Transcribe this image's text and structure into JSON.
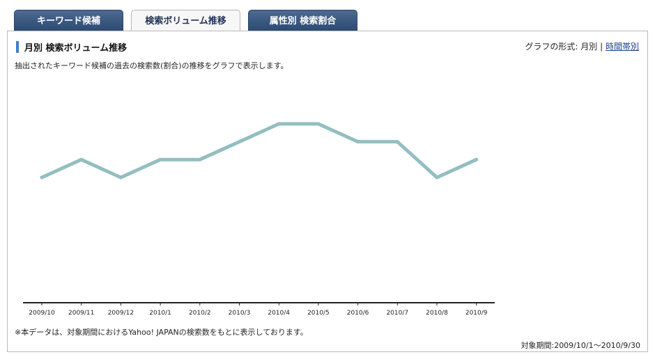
{
  "tabs": [
    {
      "label": "キーワード候補",
      "active": false
    },
    {
      "label": "検索ボリューム推移",
      "active": true
    },
    {
      "label": "属性別 検索割合",
      "active": false
    }
  ],
  "section": {
    "title": "月別 検索ボリューム推移",
    "description": "抽出されたキーワード候補の過去の検索数(割合)の推移をグラフで表示します。",
    "format_label": "グラフの形式:",
    "format_current": "月別",
    "format_separator": "|",
    "format_link": "時間帯別"
  },
  "footer": {
    "note": "※本データは、対象期間におけるYahoo! JAPANの検索数をもとに表示しております。",
    "period": "対象期間:2009/10/1〜2010/9/30"
  },
  "colors": {
    "line": "#93bec1",
    "tab_dark": "#2c4a72",
    "accent": "#3f7fc8"
  },
  "chart_data": {
    "type": "line",
    "categories": [
      "2009/10",
      "2009/11",
      "2009/12",
      "2010/1",
      "2010/2",
      "2010/3",
      "2010/4",
      "2010/5",
      "2010/6",
      "2010/7",
      "2010/8",
      "2010/9"
    ],
    "values": [
      60,
      65,
      60,
      65,
      65,
      70,
      75,
      75,
      70,
      70,
      60,
      65
    ],
    "ylim": [
      0,
      100
    ],
    "grid": false,
    "legend": "none",
    "title": "",
    "xlabel": "",
    "ylabel": ""
  }
}
